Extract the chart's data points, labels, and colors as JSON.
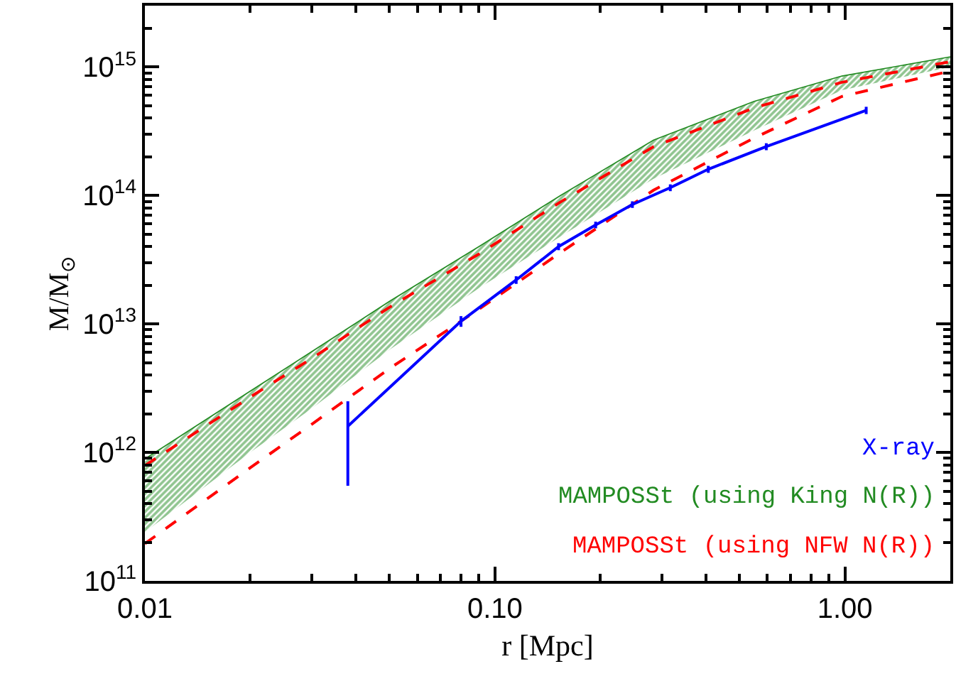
{
  "chart_data": {
    "type": "line",
    "xlabel": "r [Mpc]",
    "ylabel": "M/M$_{⊙}$",
    "log": "xy",
    "legend": "bottom right",
    "marker": "none",
    "xlim": [
      0.01,
      2
    ],
    "ylim": [
      100000000000.0,
      3000000000000000.0
    ],
    "xticks": [
      {
        "value": 0.01,
        "label": "0.01"
      },
      {
        "value": 0.02,
        "label": null
      },
      {
        "value": 0.03,
        "label": null
      },
      {
        "value": 0.04,
        "label": null
      },
      {
        "value": 0.05,
        "label": null
      },
      {
        "value": 0.06,
        "label": null
      },
      {
        "value": 0.07,
        "label": null
      },
      {
        "value": 0.08,
        "label": null
      },
      {
        "value": 0.09,
        "label": null
      },
      {
        "value": 0.1,
        "label": "0.10"
      },
      {
        "value": 0.2,
        "label": null
      },
      {
        "value": 0.3,
        "label": null
      },
      {
        "value": 0.4,
        "label": null
      },
      {
        "value": 0.5,
        "label": null
      },
      {
        "value": 0.6,
        "label": null
      },
      {
        "value": 0.7,
        "label": null
      },
      {
        "value": 0.8,
        "label": null
      },
      {
        "value": 0.9,
        "label": null
      },
      {
        "value": 1,
        "label": "1.00"
      }
    ],
    "yticks": [
      {
        "value": 100000000000.0,
        "label": "10$^{11}$"
      },
      {
        "value": 200000000000.0,
        "label": null
      },
      {
        "value": 300000000000.0,
        "label": null
      },
      {
        "value": 400000000000.0,
        "label": null
      },
      {
        "value": 500000000000.0,
        "label": null
      },
      {
        "value": 600000000000.0,
        "label": null
      },
      {
        "value": 700000000000.0,
        "label": null
      },
      {
        "value": 800000000000.0,
        "label": null
      },
      {
        "value": 900000000000.0,
        "label": null
      },
      {
        "value": 1000000000000.0,
        "label": "10$^{12}$"
      },
      {
        "value": 2000000000000.0,
        "label": null
      },
      {
        "value": 3000000000000.0,
        "label": null
      },
      {
        "value": 4000000000000.0,
        "label": null
      },
      {
        "value": 5000000000000.0,
        "label": null
      },
      {
        "value": 6000000000000.0,
        "label": null
      },
      {
        "value": 7000000000000.0,
        "label": null
      },
      {
        "value": 8000000000000.0,
        "label": null
      },
      {
        "value": 9000000000000.0,
        "label": null
      },
      {
        "value": 10000000000000.0,
        "label": "10$^{13}$"
      },
      {
        "value": 20000000000000.0,
        "label": null
      },
      {
        "value": 30000000000000.0,
        "label": null
      },
      {
        "value": 40000000000000.0,
        "label": null
      },
      {
        "value": 50000000000000.0,
        "label": null
      },
      {
        "value": 60000000000000.0,
        "label": null
      },
      {
        "value": 70000000000000.0,
        "label": null
      },
      {
        "value": 80000000000000.0,
        "label": null
      },
      {
        "value": 90000000000000.0,
        "label": null
      },
      {
        "value": 100000000000000.0,
        "label": "10$^{14}$"
      },
      {
        "value": 200000000000000.0,
        "label": null
      },
      {
        "value": 300000000000000.0,
        "label": null
      },
      {
        "value": 400000000000000.0,
        "label": null
      },
      {
        "value": 500000000000000.0,
        "label": null
      },
      {
        "value": 600000000000000.0,
        "label": null
      },
      {
        "value": 700000000000000.0,
        "label": null
      },
      {
        "value": 800000000000000.0,
        "label": null
      },
      {
        "value": 900000000000000.0,
        "label": null
      },
      {
        "value": 1000000000000000.0,
        "label": "10$^{15}$"
      },
      {
        "value": 2000000000000000.0,
        "label": null
      },
      {
        "value": 3000000000000000.0,
        "label": null
      }
    ],
    "series": [
      {
        "name": "MAMPOSSt (using King N(R))",
        "type": "line",
        "color": "#228b22",
        "line_style": "solid",
        "x": [
          0.01,
          0.02,
          0.03,
          0.05,
          0.09,
          0.154,
          0.284,
          0.55,
          0.98,
          2
        ],
        "values": [
          890000000000.0,
          3000000000000.0,
          6100000000000.0,
          15000000000000.0,
          40000000000000.0,
          100000000000000.0,
          270000000000000.0,
          540000000000000.0,
          850000000000000.0,
          1200000000000000.0
        ],
        "lower": [
          240000000000.0,
          1000000000000.0,
          2200000000000.0,
          6300000000000.0,
          19000000000000.0,
          48000000000000.0,
          135000000000000.0,
          320000000000000.0,
          660000000000000.0,
          1000000000000000.0
        ],
        "upper": [
          890000000000.0,
          3000000000000.0,
          6100000000000.0,
          15000000000000.0,
          40000000000000.0,
          100000000000000.0,
          270000000000000.0,
          540000000000000.0,
          850000000000000.0,
          1200000000000000.0
        ]
      },
      {
        "name": "MAMPOSSt (using NFW N(R))",
        "color": "#ff0000",
        "line_style": "dashed",
        "x": [
          0.01,
          0.02,
          0.03,
          0.05,
          0.09,
          0.154,
          0.284,
          0.55,
          0.98,
          2
        ],
        "values": [
          790000000000.0,
          2700000000000.0,
          5400000000000.0,
          13500000000000.0,
          35000000000000.0,
          89000000000000.0,
          240000000000000.0,
          480000000000000.0,
          760000000000000.0,
          1100000000000000.0
        ]
      },
      {
        "color": "#ff0000",
        "line_style": "dashed",
        "x": [
          0.01,
          0.02,
          0.03,
          0.05,
          0.09,
          0.154,
          0.284,
          0.55,
          0.98,
          2
        ],
        "values": [
          195000000000.0,
          760000000000.0,
          1660000000000.0,
          4500000000000.0,
          13000000000000.0,
          36000000000000.0,
          110000000000000.0,
          280000000000000.0,
          590000000000000.0,
          930000000000000.0
        ]
      },
      {
        "name": "X-ray",
        "color": "#0000ff",
        "line_style": "solid",
        "x": [
          0.038,
          0.08,
          0.115,
          0.152,
          0.194,
          0.247,
          0.317,
          0.407,
          0.596,
          1.15
        ],
        "values": [
          1600000000000.0,
          10500000000000.0,
          22000000000000.0,
          40000000000000.0,
          59000000000000.0,
          85000000000000.0,
          115000000000000.0,
          160000000000000.0,
          240000000000000.0,
          460000000000000.0
        ],
        "errors": [
          [
            550000000000.0,
            2500000000000.0
          ],
          [
            9500000000000.0,
            11500000000000.0
          ],
          [
            20500000000000.0,
            23500000000000.0
          ],
          [
            37500000000000.0,
            42500000000000.0
          ],
          [
            55500000000000.0,
            62500000000000.0
          ],
          [
            80000000000000.0,
            90000000000000.0
          ],
          [
            108000000000000.0,
            122000000000000.0
          ],
          [
            150000000000000.0,
            170000000000000.0
          ],
          [
            225000000000000.0,
            255000000000000.0
          ],
          [
            430000000000000.0,
            490000000000000.0
          ]
        ]
      }
    ]
  }
}
